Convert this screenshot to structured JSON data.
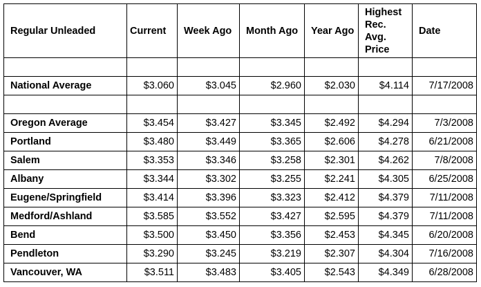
{
  "columns": [
    "Regular Unleaded",
    "Current",
    "Week Ago",
    "Month Ago",
    "Year Ago",
    "Highest Rec. Avg. Price",
    "Date"
  ],
  "national": {
    "name": "National Average",
    "current": "$3.060",
    "week_ago": "$3.045",
    "month_ago": "$2.960",
    "year_ago": "$2.030",
    "highest": "$4.114",
    "date": "7/17/2008"
  },
  "rows": [
    {
      "name": "Oregon Average",
      "current": "$3.454",
      "week_ago": "$3.427",
      "month_ago": "$3.345",
      "year_ago": "$2.492",
      "highest": "$4.294",
      "date": "7/3/2008"
    },
    {
      "name": "Portland",
      "current": "$3.480",
      "week_ago": "$3.449",
      "month_ago": "$3.365",
      "year_ago": "$2.606",
      "highest": "$4.278",
      "date": "6/21/2008"
    },
    {
      "name": "Salem",
      "current": "$3.353",
      "week_ago": "$3.346",
      "month_ago": "$3.258",
      "year_ago": "$2.301",
      "highest": "$4.262",
      "date": "7/8/2008"
    },
    {
      "name": "Albany",
      "current": "$3.344",
      "week_ago": "$3.302",
      "month_ago": "$3.255",
      "year_ago": "$2.241",
      "highest": "$4.305",
      "date": "6/25/2008"
    },
    {
      "name": "Eugene/Springfield",
      "current": "$3.414",
      "week_ago": "$3.396",
      "month_ago": "$3.323",
      "year_ago": "$2.412",
      "highest": "$4.379",
      "date": "7/11/2008"
    },
    {
      "name": "Medford/Ashland",
      "current": "$3.585",
      "week_ago": "$3.552",
      "month_ago": "$3.427",
      "year_ago": "$2.595",
      "highest": "$4.379",
      "date": "7/11/2008"
    },
    {
      "name": "Bend",
      "current": "$3.500",
      "week_ago": "$3.450",
      "month_ago": "$3.356",
      "year_ago": "$2.453",
      "highest": "$4.345",
      "date": "6/20/2008"
    },
    {
      "name": "Pendleton",
      "current": "$3.290",
      "week_ago": "$3.245",
      "month_ago": "$3.219",
      "year_ago": "$2.307",
      "highest": "$4.304",
      "date": "7/16/2008"
    },
    {
      "name": "Vancouver, WA",
      "current": "$3.511",
      "week_ago": "$3.483",
      "month_ago": "$3.405",
      "year_ago": "$2.543",
      "highest": "$4.349",
      "date": "6/28/2008"
    }
  ]
}
